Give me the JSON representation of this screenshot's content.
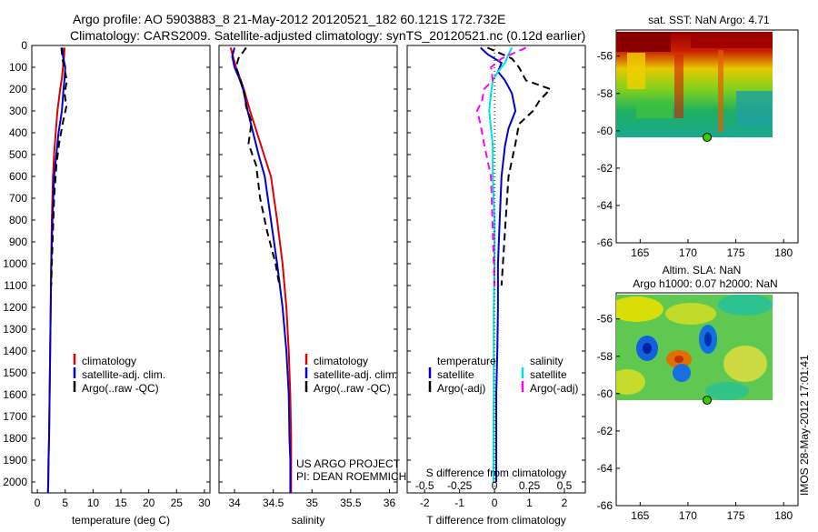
{
  "header": {
    "line1": "Argo profile: AO 5903883_8 21-May-2012 20120521_182 60.121S 172.732E",
    "line2": "Climatology: CARS2009. Satellite-adjusted climatology: synTS_20120521.nc (0.12d earlier)"
  },
  "footer_stamp": "IMOS 28-May-2012 17:01:41",
  "colors": {
    "climatology": "#dd0000",
    "satellite": "#0000cc",
    "argo": "#000000",
    "sal_sat": "#00e0e0",
    "sal_argo": "#ff00ff",
    "marker": "#33cc00"
  },
  "chart_data": [
    {
      "type": "line",
      "id": "temperature",
      "xlabel": "temperature (deg C)",
      "ylabel": "",
      "xlim": [
        -1,
        31
      ],
      "ylim": [
        2050,
        0
      ],
      "xticks": [
        0,
        5,
        10,
        15,
        20,
        25,
        30
      ],
      "yticks": [
        0,
        100,
        200,
        300,
        400,
        500,
        600,
        700,
        800,
        900,
        1000,
        1100,
        1200,
        1300,
        1400,
        1500,
        1600,
        1700,
        1800,
        1900,
        2000
      ],
      "legend": [
        "climatology",
        "satellite-adj. clim.",
        "Argo(..raw -QC)"
      ],
      "series": [
        {
          "name": "climatology",
          "style": "solid",
          "color": "#dd0000",
          "x": [
            4.9,
            4.8,
            4.6,
            4.4,
            4.1,
            3.6,
            3.3,
            3.0,
            2.8,
            2.6,
            2.5,
            2.4,
            2.3,
            2.2,
            2.1,
            2.0,
            1.95,
            1.9
          ],
          "y": [
            10,
            50,
            100,
            150,
            200,
            300,
            400,
            500,
            600,
            800,
            1000,
            1200,
            1400,
            1600,
            1800,
            1900,
            2000,
            2050
          ]
        },
        {
          "name": "satellite-adj. clim.",
          "style": "solid",
          "color": "#0000cc",
          "x": [
            4.5,
            4.6,
            5.0,
            4.9,
            4.7,
            4.4,
            3.8,
            3.4,
            3.0,
            2.7,
            2.5,
            2.4,
            2.3,
            2.2,
            2.1,
            2.0,
            1.95,
            1.9
          ],
          "y": [
            10,
            50,
            100,
            150,
            200,
            300,
            400,
            500,
            600,
            800,
            1000,
            1200,
            1400,
            1600,
            1800,
            1900,
            2000,
            2050
          ]
        },
        {
          "name": "Argo(..raw -QC)",
          "style": "dash",
          "color": "#000000",
          "x": [
            4.3,
            4.5,
            4.8,
            5.3,
            4.9,
            5.2,
            4.6,
            3.9,
            3.4,
            3.0,
            2.8,
            2.6,
            2.5
          ],
          "y": [
            10,
            60,
            100,
            160,
            220,
            280,
            350,
            450,
            550,
            700,
            850,
            1000,
            1100
          ]
        }
      ]
    },
    {
      "type": "line",
      "id": "salinity",
      "xlabel": "salinity",
      "xlim": [
        33.8,
        36.1
      ],
      "xticks": [
        34,
        34.5,
        35,
        35.5,
        36
      ],
      "xtick_labels": [
        "34",
        "34.5",
        "35",
        "35.5",
        "36"
      ],
      "legend": [
        "climatology",
        "satellite-adj. clim.",
        "Argo(..raw -QC)"
      ],
      "annotations": [
        "US ARGO PROJECT",
        "PI: DEAN ROEMMICH"
      ],
      "series": [
        {
          "name": "climatology",
          "style": "solid",
          "color": "#dd0000",
          "x": [
            33.95,
            33.98,
            34.02,
            34.07,
            34.12,
            34.2,
            34.29,
            34.38,
            34.47,
            34.55,
            34.62,
            34.67,
            34.7,
            34.72,
            34.73,
            34.73,
            34.73,
            34.73
          ],
          "y": [
            10,
            50,
            100,
            150,
            200,
            300,
            400,
            500,
            600,
            800,
            1000,
            1200,
            1400,
            1600,
            1800,
            1900,
            2000,
            2050
          ]
        },
        {
          "name": "satellite-adj. clim.",
          "style": "solid",
          "color": "#0000cc",
          "x": [
            34.0,
            33.97,
            34.0,
            34.06,
            34.11,
            34.17,
            34.24,
            34.31,
            34.39,
            34.47,
            34.55,
            34.62,
            34.67,
            34.7,
            34.71,
            34.72,
            34.72,
            34.72
          ],
          "y": [
            10,
            50,
            100,
            150,
            200,
            300,
            400,
            500,
            600,
            800,
            1000,
            1200,
            1400,
            1600,
            1800,
            1900,
            2000,
            2050
          ]
        },
        {
          "name": "Argo(..raw -QC)",
          "style": "dash",
          "color": "#000000",
          "x": [
            34.15,
            34.05,
            34.02,
            34.08,
            34.13,
            34.15,
            34.22,
            34.18,
            34.28,
            34.33,
            34.42,
            34.53,
            34.58
          ],
          "y": [
            10,
            60,
            100,
            160,
            220,
            280,
            350,
            450,
            550,
            700,
            850,
            1000,
            1100
          ]
        }
      ]
    },
    {
      "type": "line",
      "id": "difference",
      "xlabel": "T difference from climatology",
      "xlabel_top": "S difference from climatology",
      "xlim": [
        -2.5,
        2.6
      ],
      "xticks": [
        -2,
        -1,
        0,
        1,
        2
      ],
      "xtick_labels": [
        "-2",
        "-1",
        "0",
        "1",
        "2"
      ],
      "xticks_top_labels": [
        "-0.5",
        "-0.25",
        "0",
        "0.25",
        "0.5"
      ],
      "xticks_top_values": [
        -2,
        -1,
        0,
        1,
        2
      ],
      "legend_titles": [
        "temperature",
        "salinity"
      ],
      "legend": [
        "satellite",
        "Argo(-adj)",
        "satellite",
        "Argo(-adj)"
      ],
      "series": [
        {
          "name": "satellite",
          "group": "temperature",
          "style": "solid",
          "color": "#0000cc",
          "x": [
            -0.4,
            -0.2,
            0.2,
            0.1,
            0.3,
            0.5,
            0.6,
            0.4,
            0.3,
            0.2,
            0.15,
            0.1,
            0.1,
            0.08,
            0.05,
            0.05,
            0.05
          ],
          "y": [
            10,
            40,
            80,
            120,
            160,
            220,
            300,
            380,
            460,
            600,
            800,
            1000,
            1200,
            1400,
            1600,
            1800,
            2000
          ]
        },
        {
          "name": "Argo(-adj)",
          "group": "temperature",
          "style": "dash",
          "color": "#000000",
          "x": [
            -0.2,
            0.5,
            0.7,
            0.9,
            1.6,
            1.3,
            1.1,
            0.7,
            0.6,
            0.4,
            0.3,
            0.2
          ],
          "y": [
            10,
            60,
            100,
            160,
            200,
            250,
            300,
            360,
            450,
            600,
            850,
            1100
          ]
        },
        {
          "name": "satellite",
          "group": "salinity",
          "style": "solid",
          "color": "#00e0e0",
          "x": [
            0.5,
            0.4,
            0.3,
            0.1,
            -0.05,
            -0.1,
            -0.15,
            -0.1,
            -0.05,
            -0.05,
            0.0,
            0.0,
            -0.02,
            -0.02,
            -0.02,
            -0.03,
            -0.03
          ],
          "y": [
            10,
            40,
            80,
            120,
            160,
            220,
            300,
            380,
            460,
            600,
            800,
            1000,
            1200,
            1400,
            1600,
            1800,
            2000
          ]
        },
        {
          "name": "Argo(-adj)",
          "group": "salinity",
          "style": "dash",
          "color": "#ff00ff",
          "x": [
            0.9,
            0.2,
            -0.1,
            -0.05,
            -0.3,
            -0.35,
            -0.5,
            -0.4,
            -0.3,
            -0.1,
            -0.05,
            0.0
          ],
          "y": [
            10,
            60,
            100,
            160,
            200,
            250,
            300,
            360,
            450,
            600,
            850,
            1100
          ]
        }
      ]
    },
    {
      "type": "heatmap",
      "id": "sst_map",
      "title": "sat. SST: NaN Argo: 4.71",
      "xlim": [
        162.5,
        181.5
      ],
      "ylim": [
        -66,
        -54.6
      ],
      "xticks": [
        165,
        170,
        175,
        180
      ],
      "yticks": [
        -56,
        -58,
        -60,
        -62,
        -64,
        -66
      ],
      "data_extent": {
        "lon": [
          162.5,
          180
        ],
        "lat": [
          -60.2,
          -54.6
        ]
      },
      "marker": {
        "lon": 172.732,
        "lat": -60.121
      }
    },
    {
      "type": "heatmap",
      "id": "sla_map",
      "title_lines": [
        "Altim. SLA: NaN",
        "Argo h1000: 0.07 h2000: NaN"
      ],
      "xlim": [
        162.5,
        181.5
      ],
      "ylim": [
        -66,
        -54.6
      ],
      "xticks": [
        165,
        170,
        175,
        180
      ],
      "yticks": [
        -56,
        -58,
        -60,
        -62,
        -64,
        -66
      ],
      "data_extent": {
        "lon": [
          162.5,
          180
        ],
        "lat": [
          -60.2,
          -54.6
        ]
      },
      "marker": {
        "lon": 172.732,
        "lat": -60.121
      }
    }
  ]
}
